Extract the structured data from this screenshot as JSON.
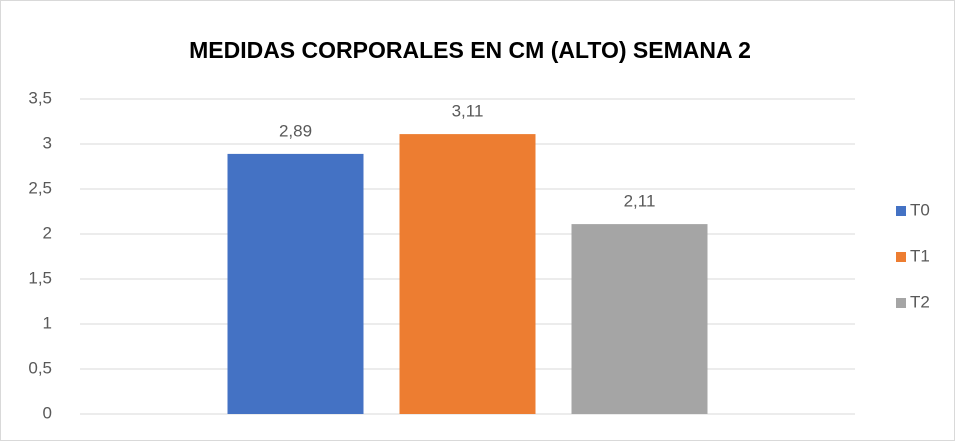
{
  "chart_data": {
    "type": "bar",
    "title": "MEDIDAS CORPORALES EN CM (ALTO) SEMANA 2",
    "categories": [
      null
    ],
    "series": [
      {
        "name": "T0",
        "color": "#4472c4",
        "values": [
          2.89
        ],
        "value_labels": [
          "2,89"
        ]
      },
      {
        "name": "T1",
        "color": "#ed7d31",
        "values": [
          3.11
        ],
        "value_labels": [
          "3,11"
        ]
      },
      {
        "name": "T2",
        "color": "#a5a5a5",
        "values": [
          2.11
        ],
        "value_labels": [
          "2,11"
        ]
      }
    ],
    "ylim": [
      0,
      3.5
    ],
    "yticks": [
      0,
      {
        "value": 0.5,
        "label": "0,5"
      },
      1,
      {
        "value": 1.5,
        "label": "1,5"
      },
      2,
      {
        "value": 2.5,
        "label": "2,5"
      },
      3,
      {
        "value": 3.5,
        "label": "3,5"
      }
    ],
    "grid": true,
    "legend": "right"
  }
}
